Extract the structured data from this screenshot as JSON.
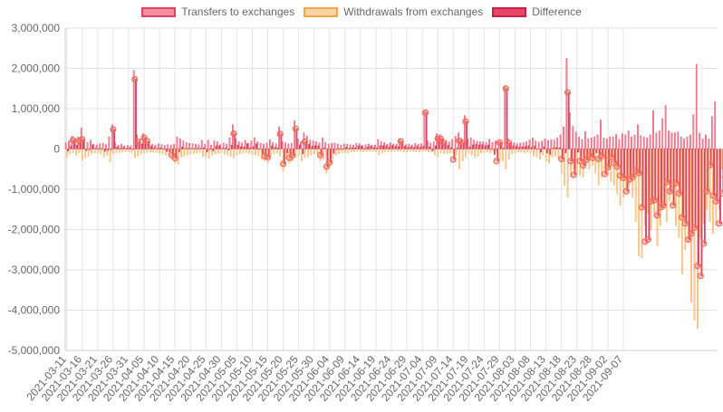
{
  "chart_data": {
    "type": "bar",
    "legend_position": "top",
    "grid": true,
    "ylim": [
      -5000000,
      3000000
    ],
    "y_ticks": [
      "3,000,000",
      "2,000,000",
      "1,000,000",
      "0",
      "-1,000,000",
      "-2,000,000",
      "-3,000,000",
      "-4,000,000",
      "-5,000,000"
    ],
    "x_ticks": [
      "2021-03-11",
      "2021-03-16",
      "2021-03-21",
      "2021-03-26",
      "2021-03-31",
      "2021-04-05",
      "2021-04-10",
      "2021-04-15",
      "2021-04-20",
      "2021-04-25",
      "2021-04-30",
      "2021-05-05",
      "2021-05-10",
      "2021-05-15",
      "2021-05-20",
      "2021-05-25",
      "2021-05-30",
      "2021-06-04",
      "2021-06-09",
      "2021-06-14",
      "2021-06-19",
      "2021-06-24",
      "2021-06-29",
      "2021-07-04",
      "2021-07-09",
      "2021-07-14",
      "2021-07-19",
      "2021-07-24",
      "2021-07-29",
      "2021-08-03",
      "2021-08-08",
      "2021-08-13",
      "2021-08-18",
      "2021-08-23",
      "2021-08-28",
      "2021-09-02",
      "2021-09-07"
    ],
    "colors": {
      "transfers_fill": "#f48ea2",
      "transfers_border": "#e3405f",
      "withdrawals_fill": "#fdd2a6",
      "withdrawals_border": "#f5a442",
      "difference_fill": "#e8476a",
      "difference_border": "#c72149",
      "point": "#f06a5a",
      "grid": "#e2e2e2",
      "tick_text": "#666666"
    },
    "series": [
      {
        "name": "Transfers to exchanges",
        "kind": "bar",
        "values": [
          150000,
          200000,
          320000,
          250000,
          300000,
          520000,
          180000,
          160000,
          220000,
          120000,
          100000,
          130000,
          140000,
          110000,
          300000,
          600000,
          150000,
          100000,
          120000,
          80000,
          90000,
          80000,
          1950000,
          350000,
          250000,
          380000,
          280000,
          150000,
          120000,
          100000,
          130000,
          110000,
          90000,
          110000,
          100000,
          120000,
          300000,
          250000,
          200000,
          160000,
          140000,
          130000,
          120000,
          110000,
          210000,
          120000,
          220000,
          100000,
          200000,
          180000,
          110000,
          150000,
          120000,
          280000,
          600000,
          250000,
          180000,
          150000,
          220000,
          140000,
          200000,
          280000,
          180000,
          140000,
          120000,
          150000,
          230000,
          160000,
          130000,
          550000,
          180000,
          150000,
          130000,
          140000,
          700000,
          250000,
          180000,
          400000,
          320000,
          220000,
          200000,
          180000,
          150000,
          280000,
          160000,
          120000,
          140000,
          150000,
          120000,
          100000,
          130000,
          120000,
          110000,
          100000,
          140000,
          130000,
          90000,
          110000,
          120000,
          100000,
          100000,
          230000,
          180000,
          160000,
          120000,
          150000,
          130000,
          120000,
          250000,
          150000,
          110000,
          120000,
          100000,
          140000,
          120000,
          130000,
          960000,
          200000,
          150000,
          180000,
          380000,
          360000,
          250000,
          200000,
          180000,
          240000,
          320000,
          400000,
          250000,
          830000,
          250000,
          280000,
          220000,
          200000,
          180000,
          180000,
          160000,
          240000,
          160000,
          200000,
          180000,
          140000,
          1550000,
          250000,
          160000,
          150000,
          130000,
          140000,
          160000,
          180000,
          220000,
          270000,
          200000,
          170000,
          200000,
          250000,
          210000,
          230000,
          220000,
          280000,
          350000,
          550000,
          2250000,
          900000,
          560000,
          420000,
          300000,
          240000,
          430000,
          250000,
          280000,
          300000,
          350000,
          720000,
          280000,
          250000,
          300000,
          300000,
          360000,
          240000,
          380000,
          350000,
          450000,
          300000,
          350000,
          600000,
          330000,
          300000,
          280000,
          350000,
          950000,
          400000,
          450000,
          750000,
          1080000,
          450000,
          400000,
          400000,
          420000,
          300000,
          250000,
          300000,
          350000,
          850000,
          2100000,
          400000,
          250000,
          350000,
          250000,
          800000,
          1180000
        ]
      },
      {
        "name": "Withdrawals from exchanges",
        "kind": "bar",
        "values": [
          -200000,
          -120000,
          -100000,
          -150000,
          -100000,
          -280000,
          -220000,
          -180000,
          -120000,
          -100000,
          -90000,
          -130000,
          -200000,
          -150000,
          -320000,
          -120000,
          -100000,
          -90000,
          -80000,
          -70000,
          -60000,
          -90000,
          -220000,
          -180000,
          -120000,
          -100000,
          -90000,
          -80000,
          -80000,
          -90000,
          -100000,
          -120000,
          -150000,
          -180000,
          -250000,
          -350000,
          -380000,
          -200000,
          -180000,
          -150000,
          -130000,
          -120000,
          -100000,
          -90000,
          -180000,
          -200000,
          -230000,
          -150000,
          -120000,
          -100000,
          -90000,
          -130000,
          -150000,
          -180000,
          -220000,
          -150000,
          -120000,
          -100000,
          -90000,
          -110000,
          -140000,
          -150000,
          -180000,
          -250000,
          -300000,
          -350000,
          -150000,
          -120000,
          -100000,
          -180000,
          -550000,
          -250000,
          -350000,
          -300000,
          -200000,
          -150000,
          -300000,
          -220000,
          -200000,
          -150000,
          -120000,
          -100000,
          -300000,
          -250000,
          -600000,
          -450000,
          -250000,
          -150000,
          -120000,
          -100000,
          -90000,
          -100000,
          -80000,
          -70000,
          -60000,
          -60000,
          -70000,
          -60000,
          -50000,
          -60000,
          -70000,
          -150000,
          -100000,
          -80000,
          -70000,
          -60000,
          -60000,
          -60000,
          -60000,
          -80000,
          -70000,
          -60000,
          -60000,
          -70000,
          -80000,
          -60000,
          -60000,
          -70000,
          -80000,
          -150000,
          -200000,
          -100000,
          -120000,
          -110000,
          -100000,
          -100000,
          -150000,
          -500000,
          -300000,
          -200000,
          -100000,
          -150000,
          -200000,
          -180000,
          -100000,
          -90000,
          -80000,
          -100000,
          -70000,
          -60000,
          -250000,
          -300000,
          -500000,
          -250000,
          -120000,
          -100000,
          -80000,
          -80000,
          -90000,
          -80000,
          -100000,
          -180000,
          -200000,
          -250000,
          -150000,
          -300000,
          -350000,
          -200000,
          -180000,
          -250000,
          -600000,
          -900000,
          -1200000,
          -700000,
          -500000,
          -600000,
          -650000,
          -700000,
          -400000,
          -500000,
          -400000,
          -600000,
          -900000,
          -700000,
          -500000,
          -650000,
          -800000,
          -900000,
          -1100000,
          -1400000,
          -1200000,
          -1000000,
          -900000,
          -1200000,
          -1800000,
          -2650000,
          -2700000,
          -1900000,
          -1600000,
          -2000000,
          -1700000,
          -2400000,
          -1900000,
          -1500000,
          -1800000,
          -1300000,
          -1400000,
          -1900000,
          -2200000,
          -3100000,
          -2500000,
          -2300000,
          -3800000,
          -4250000,
          -4450000,
          -2200000,
          -1850000,
          -1500000,
          -1800000,
          -2100000,
          -1900000,
          -1500000,
          -500000
        ]
      },
      {
        "name": "Difference",
        "kind": "bar+points",
        "values": [
          -50000,
          80000,
          220000,
          100000,
          200000,
          240000,
          -40000,
          -20000,
          100000,
          20000,
          10000,
          0,
          -60000,
          -40000,
          -20000,
          480000,
          50000,
          10000,
          40000,
          10000,
          30000,
          -10000,
          1730000,
          170000,
          130000,
          280000,
          190000,
          70000,
          40000,
          10000,
          30000,
          -10000,
          -60000,
          -70000,
          -150000,
          -230000,
          -80000,
          50000,
          20000,
          10000,
          10000,
          10000,
          20000,
          20000,
          30000,
          -80000,
          -10000,
          -50000,
          80000,
          80000,
          20000,
          20000,
          -30000,
          100000,
          380000,
          100000,
          60000,
          50000,
          130000,
          30000,
          60000,
          130000,
          0,
          -110000,
          -180000,
          -200000,
          80000,
          40000,
          30000,
          370000,
          -370000,
          -100000,
          -220000,
          -160000,
          500000,
          100000,
          -120000,
          180000,
          120000,
          70000,
          80000,
          80000,
          -150000,
          30000,
          -440000,
          -330000,
          -110000,
          0,
          0,
          0,
          40000,
          20000,
          30000,
          30000,
          80000,
          70000,
          20000,
          50000,
          70000,
          40000,
          30000,
          80000,
          80000,
          80000,
          50000,
          90000,
          70000,
          60000,
          190000,
          70000,
          40000,
          60000,
          40000,
          70000,
          40000,
          70000,
          900000,
          50000,
          -50000,
          80000,
          260000,
          250000,
          150000,
          100000,
          30000,
          -260000,
          20000,
          200000,
          150000,
          680000,
          50000,
          100000,
          120000,
          100000,
          110000,
          80000,
          100000,
          -10000,
          -140000,
          -300000,
          160000,
          20000,
          1500000,
          150000,
          80000,
          70000,
          40000,
          60000,
          60000,
          80000,
          40000,
          70000,
          0,
          -80000,
          50000,
          -100000,
          -140000,
          30000,
          40000,
          30000,
          -250000,
          -100000,
          1400000,
          -300000,
          -640000,
          -80000,
          -300000,
          -410000,
          -270000,
          -150000,
          -220000,
          -100000,
          -250000,
          -180000,
          -620000,
          -450000,
          -200000,
          -350000,
          -440000,
          -660000,
          -720000,
          -1050000,
          -750000,
          -700000,
          -550000,
          -600000,
          -1450000,
          -2300000,
          -2250000,
          -1300000,
          -1270000,
          -1650000,
          -1450000,
          -1400000,
          -820000,
          -1050000,
          -1400000,
          -850000,
          -1100000,
          -1700000,
          -1850000,
          -2250000,
          -2100000,
          -1950000,
          -2900000,
          -3150000,
          -2350000,
          -1050000,
          -400000,
          -1150000,
          -1300000,
          -1850000,
          -1100000,
          -700000,
          680000
        ]
      }
    ]
  }
}
